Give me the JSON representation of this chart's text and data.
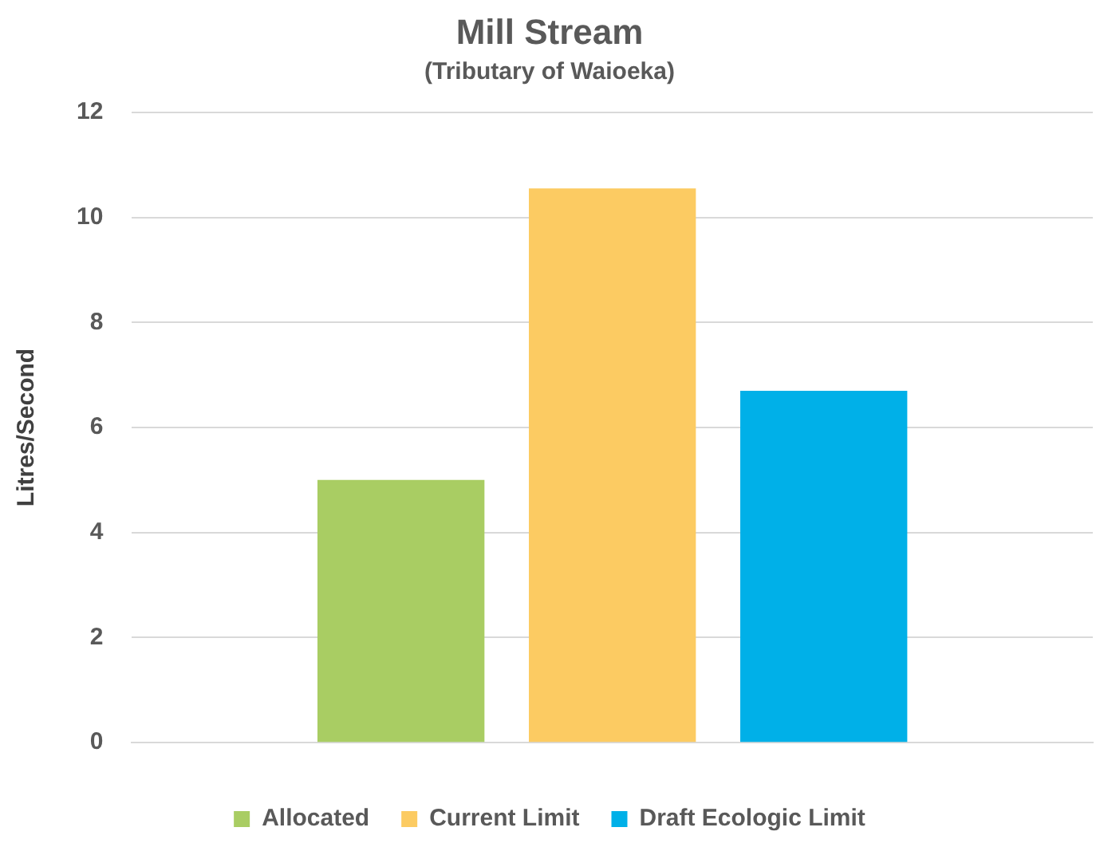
{
  "chart_data": {
    "type": "bar",
    "title": "Mill Stream",
    "subtitle": "(Tributary of Waioeka)",
    "ylabel": "Litres/Second",
    "categories": [
      null
    ],
    "series": [
      {
        "name": "Allocated",
        "color": "#a9cd63",
        "values": [
          5.0
        ]
      },
      {
        "name": "Current Limit",
        "color": "#fccb62",
        "values": [
          10.55
        ]
      },
      {
        "name": "Draft Ecologic Limit",
        "color": "#00b0e8",
        "values": [
          6.7
        ]
      }
    ],
    "ylim": [
      0,
      12
    ],
    "yticks": [
      0,
      2,
      4,
      6,
      8,
      10,
      12
    ],
    "grid": "y",
    "legend": "bottom"
  }
}
